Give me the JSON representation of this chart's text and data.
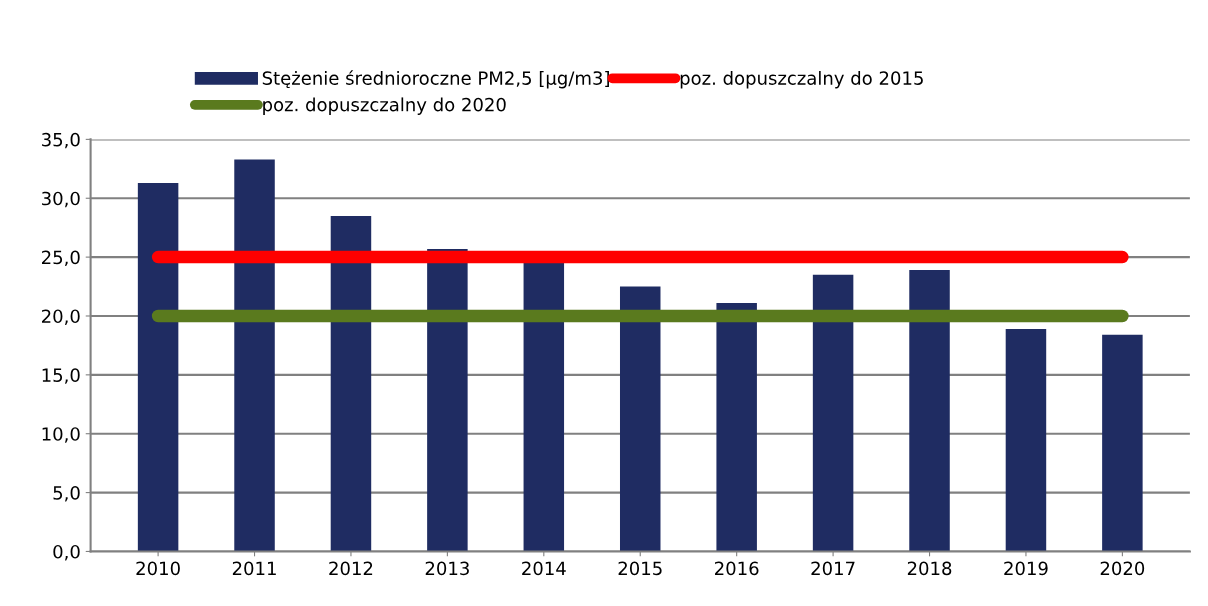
{
  "chart_data": {
    "type": "bar",
    "categories": [
      "2010",
      "2011",
      "2012",
      "2013",
      "2014",
      "2015",
      "2016",
      "2017",
      "2018",
      "2019",
      "2020"
    ],
    "series": [
      {
        "name": "Stężenie średnioroczne PM2,5 [µg/m3]",
        "color": "#1f2c62",
        "values": [
          31.3,
          33.3,
          28.5,
          25.7,
          24.5,
          22.5,
          21.1,
          23.5,
          23.9,
          18.9,
          18.4
        ]
      },
      {
        "name": "poz. dopuszczalny do 2015",
        "type": "line",
        "color": "#ff0000",
        "values": [
          25,
          25,
          25,
          25,
          25,
          25,
          25,
          25,
          25,
          25,
          25
        ]
      },
      {
        "name": "poz. dopuszczalny do 2020",
        "type": "line",
        "color": "#5a7a1e",
        "values": [
          20,
          20,
          20,
          20,
          20,
          20,
          20,
          20,
          20,
          20,
          20
        ]
      }
    ],
    "ylim": [
      0,
      35
    ],
    "yticks": [
      {
        "value": 0,
        "label": "0,0"
      },
      {
        "value": 5,
        "label": "5,0"
      },
      {
        "value": 10,
        "label": "10,0"
      },
      {
        "value": 15,
        "label": "15,0"
      },
      {
        "value": 20,
        "label": "20,0"
      },
      {
        "value": 25,
        "label": "25,0"
      },
      {
        "value": 30,
        "label": "30,0"
      },
      {
        "value": 35,
        "label": "35,0"
      }
    ],
    "grid": "y",
    "legend": "top"
  }
}
